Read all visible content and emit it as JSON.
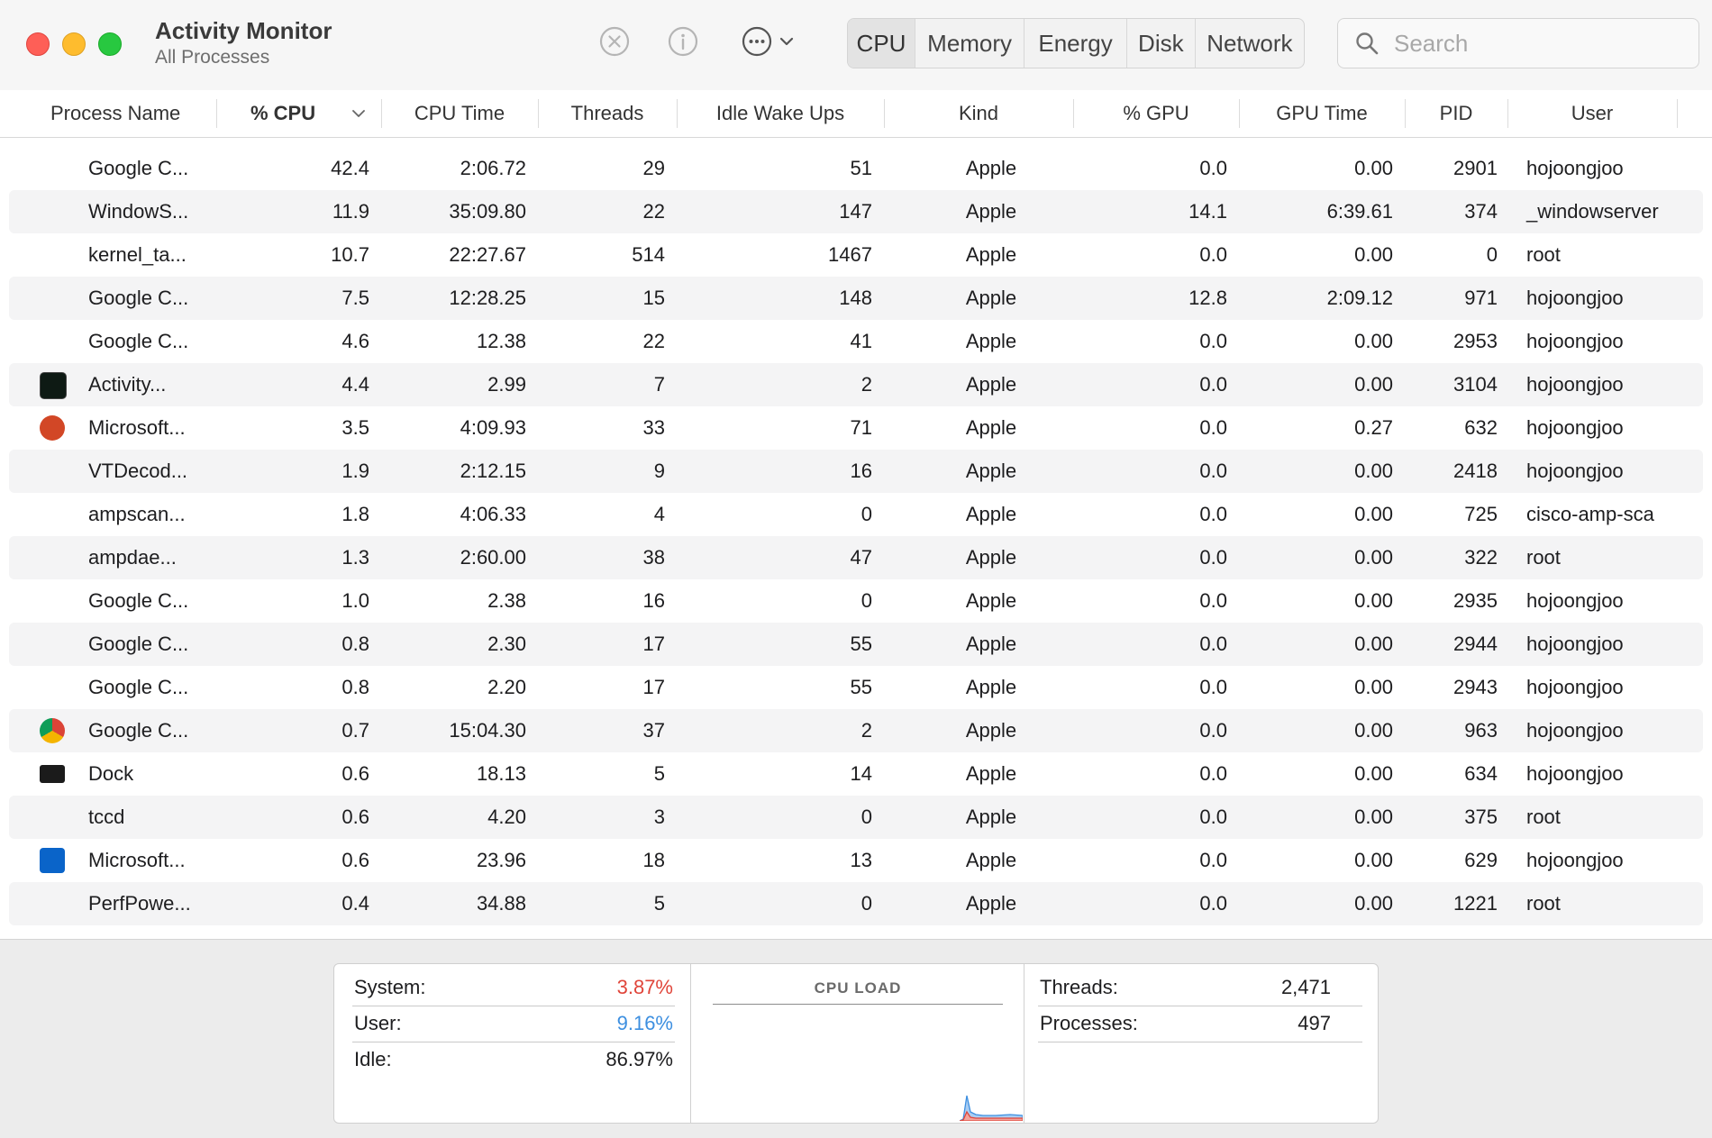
{
  "app": {
    "title": "Activity Monitor",
    "subtitle": "All Processes"
  },
  "toolbar": {
    "stop_icon": "stop-circle-icon",
    "info_icon": "info-circle-icon",
    "more_icon": "ellipsis-circle-icon",
    "tabs": [
      {
        "label": "CPU",
        "selected": true
      },
      {
        "label": "Memory",
        "selected": false
      },
      {
        "label": "Energy",
        "selected": false
      },
      {
        "label": "Disk",
        "selected": false
      },
      {
        "label": "Network",
        "selected": false
      }
    ],
    "search": {
      "placeholder": "Search",
      "value": ""
    }
  },
  "table": {
    "columns": [
      "Process Name",
      "% CPU",
      "CPU Time",
      "Threads",
      "Idle Wake Ups",
      "Kind",
      "% GPU",
      "GPU Time",
      "PID",
      "User"
    ],
    "sort_column": "% CPU",
    "rows": [
      {
        "icon": "",
        "name": "Google C...",
        "cpu": "42.4",
        "cpu_time": "2:06.72",
        "threads": "29",
        "idle_wake_ups": "51",
        "kind": "Apple",
        "gpu": "0.0",
        "gpu_time": "0.00",
        "pid": "2901",
        "user": "hojoongjoo"
      },
      {
        "icon": "",
        "name": "WindowS...",
        "cpu": "11.9",
        "cpu_time": "35:09.80",
        "threads": "22",
        "idle_wake_ups": "147",
        "kind": "Apple",
        "gpu": "14.1",
        "gpu_time": "6:39.61",
        "pid": "374",
        "user": "_windowserver"
      },
      {
        "icon": "",
        "name": "kernel_ta...",
        "cpu": "10.7",
        "cpu_time": "22:27.67",
        "threads": "514",
        "idle_wake_ups": "1467",
        "kind": "Apple",
        "gpu": "0.0",
        "gpu_time": "0.00",
        "pid": "0",
        "user": "root"
      },
      {
        "icon": "",
        "name": "Google C...",
        "cpu": "7.5",
        "cpu_time": "12:28.25",
        "threads": "15",
        "idle_wake_ups": "148",
        "kind": "Apple",
        "gpu": "12.8",
        "gpu_time": "2:09.12",
        "pid": "971",
        "user": "hojoongjoo"
      },
      {
        "icon": "",
        "name": "Google C...",
        "cpu": "4.6",
        "cpu_time": "12.38",
        "threads": "22",
        "idle_wake_ups": "41",
        "kind": "Apple",
        "gpu": "0.0",
        "gpu_time": "0.00",
        "pid": "2953",
        "user": "hojoongjoo"
      },
      {
        "icon": "activity-monitor-icon",
        "name": "Activity...",
        "cpu": "4.4",
        "cpu_time": "2.99",
        "threads": "7",
        "idle_wake_ups": "2",
        "kind": "Apple",
        "gpu": "0.0",
        "gpu_time": "0.00",
        "pid": "3104",
        "user": "hojoongjoo"
      },
      {
        "icon": "powerpoint-icon",
        "name": "Microsoft...",
        "cpu": "3.5",
        "cpu_time": "4:09.93",
        "threads": "33",
        "idle_wake_ups": "71",
        "kind": "Apple",
        "gpu": "0.0",
        "gpu_time": "0.27",
        "pid": "632",
        "user": "hojoongjoo"
      },
      {
        "icon": "",
        "name": "VTDecod...",
        "cpu": "1.9",
        "cpu_time": "2:12.15",
        "threads": "9",
        "idle_wake_ups": "16",
        "kind": "Apple",
        "gpu": "0.0",
        "gpu_time": "0.00",
        "pid": "2418",
        "user": "hojoongjoo"
      },
      {
        "icon": "",
        "name": "ampscan...",
        "cpu": "1.8",
        "cpu_time": "4:06.33",
        "threads": "4",
        "idle_wake_ups": "0",
        "kind": "Apple",
        "gpu": "0.0",
        "gpu_time": "0.00",
        "pid": "725",
        "user": "cisco-amp-sca"
      },
      {
        "icon": "",
        "name": "ampdae...",
        "cpu": "1.3",
        "cpu_time": "2:60.00",
        "threads": "38",
        "idle_wake_ups": "47",
        "kind": "Apple",
        "gpu": "0.0",
        "gpu_time": "0.00",
        "pid": "322",
        "user": "root"
      },
      {
        "icon": "",
        "name": "Google C...",
        "cpu": "1.0",
        "cpu_time": "2.38",
        "threads": "16",
        "idle_wake_ups": "0",
        "kind": "Apple",
        "gpu": "0.0",
        "gpu_time": "0.00",
        "pid": "2935",
        "user": "hojoongjoo"
      },
      {
        "icon": "",
        "name": "Google C...",
        "cpu": "0.8",
        "cpu_time": "2.30",
        "threads": "17",
        "idle_wake_ups": "55",
        "kind": "Apple",
        "gpu": "0.0",
        "gpu_time": "0.00",
        "pid": "2944",
        "user": "hojoongjoo"
      },
      {
        "icon": "",
        "name": "Google C...",
        "cpu": "0.8",
        "cpu_time": "2.20",
        "threads": "17",
        "idle_wake_ups": "55",
        "kind": "Apple",
        "gpu": "0.0",
        "gpu_time": "0.00",
        "pid": "2943",
        "user": "hojoongjoo"
      },
      {
        "icon": "chrome-icon",
        "name": "Google C...",
        "cpu": "0.7",
        "cpu_time": "15:04.30",
        "threads": "37",
        "idle_wake_ups": "2",
        "kind": "Apple",
        "gpu": "0.0",
        "gpu_time": "0.00",
        "pid": "963",
        "user": "hojoongjoo"
      },
      {
        "icon": "dock-icon",
        "name": "Dock",
        "cpu": "0.6",
        "cpu_time": "18.13",
        "threads": "5",
        "idle_wake_ups": "14",
        "kind": "Apple",
        "gpu": "0.0",
        "gpu_time": "0.00",
        "pid": "634",
        "user": "hojoongjoo"
      },
      {
        "icon": "",
        "name": "tccd",
        "cpu": "0.6",
        "cpu_time": "4.20",
        "threads": "3",
        "idle_wake_ups": "0",
        "kind": "Apple",
        "gpu": "0.0",
        "gpu_time": "0.00",
        "pid": "375",
        "user": "root"
      },
      {
        "icon": "outlook-icon",
        "name": "Microsoft...",
        "cpu": "0.6",
        "cpu_time": "23.96",
        "threads": "18",
        "idle_wake_ups": "13",
        "kind": "Apple",
        "gpu": "0.0",
        "gpu_time": "0.00",
        "pid": "629",
        "user": "hojoongjoo"
      },
      {
        "icon": "",
        "name": "PerfPowe...",
        "cpu": "0.4",
        "cpu_time": "34.88",
        "threads": "5",
        "idle_wake_ups": "0",
        "kind": "Apple",
        "gpu": "0.0",
        "gpu_time": "0.00",
        "pid": "1221",
        "user": "root"
      }
    ]
  },
  "footer": {
    "system_label": "System:",
    "system_value": "3.87%",
    "system_color": "#e0453a",
    "user_label": "User:",
    "user_value": "9.16%",
    "user_color": "#3d8fe0",
    "idle_label": "Idle:",
    "idle_value": "86.97%",
    "cpu_load_title": "CPU LOAD",
    "threads_label": "Threads:",
    "threads_value": "2,471",
    "processes_label": "Processes:",
    "processes_value": "497"
  }
}
